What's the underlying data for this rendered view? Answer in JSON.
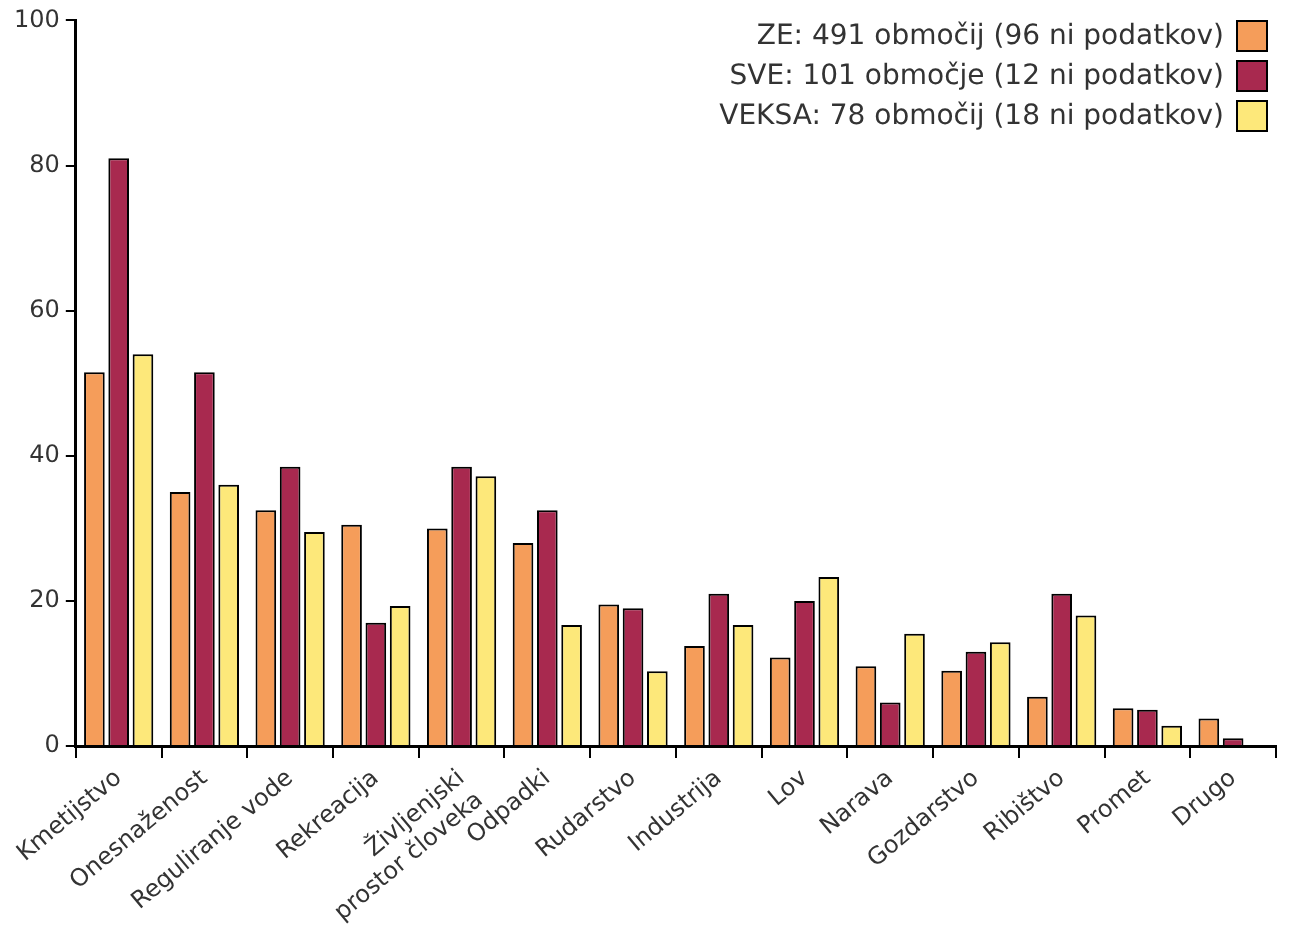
{
  "chart_data": {
    "type": "bar",
    "categories": [
      "Kmetijstvo",
      "Onesnaženost",
      "Reguliranje vode",
      "Rekreacija",
      "Življenjski prostor človeka",
      "Odpadki",
      "Rudarstvo",
      "Industrija",
      "Lov",
      "Narava",
      "Gozdarstvo",
      "Ribištvo",
      "Promet",
      "Drugo"
    ],
    "series": [
      {
        "name": "ZE: 491 območij (96 ni podatkov)",
        "color": "#f59d5a",
        "values": [
          51.5,
          35,
          32.5,
          30.5,
          30,
          28,
          19.5,
          13.8,
          12.2,
          11,
          10.4,
          6.8,
          5.2,
          3.8
        ]
      },
      {
        "name": "SVE: 101 območje (12 ni podatkov)",
        "color": "#a8294f",
        "values": [
          81,
          51.5,
          38.5,
          17,
          38.5,
          32.5,
          19,
          21,
          20,
          6,
          13,
          21,
          5,
          1.1
        ]
      },
      {
        "name": "VEKSA: 78 območij (18 ni podatkov)",
        "color": "#fde87a",
        "values": [
          54,
          36,
          29.5,
          19.3,
          37.2,
          16.7,
          10.3,
          16.7,
          23.3,
          15.5,
          14.3,
          18,
          2.8,
          0
        ]
      }
    ],
    "ylim": [
      0,
      100
    ],
    "yticks": [
      0,
      20,
      40,
      60,
      80,
      100
    ],
    "grid": false,
    "legend": "top right"
  }
}
